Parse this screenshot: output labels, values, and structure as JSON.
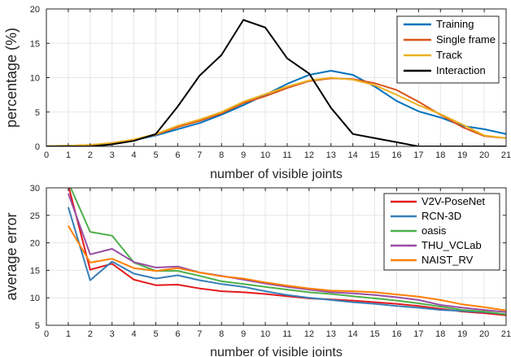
{
  "colors": {
    "blue": "#0072BD",
    "orange_red": "#D95319",
    "yellow": "#EDB120",
    "black": "#000000",
    "red": "#E41A1C",
    "steel_blue": "#377EB8",
    "green": "#4DAF4A",
    "purple": "#984EA3",
    "orange": "#FF7F00"
  },
  "chart_data": [
    {
      "type": "line",
      "xlabel": "number of visible joints",
      "ylabel": "percentage (%)",
      "xlim": [
        0,
        21
      ],
      "ylim": [
        0,
        20
      ],
      "x_ticks": [
        "0",
        "1",
        "2",
        "3",
        "4",
        "5",
        "6",
        "7",
        "8",
        "9",
        "10",
        "11",
        "12",
        "13",
        "14",
        "15",
        "16",
        "17",
        "18",
        "19",
        "20",
        "21"
      ],
      "y_ticks": [
        "0",
        "5",
        "10",
        "15",
        "20"
      ],
      "grid": "on",
      "legend_position": "top-right",
      "x": [
        0,
        1,
        2,
        3,
        4,
        5,
        6,
        7,
        8,
        9,
        10,
        11,
        12,
        13,
        14,
        15,
        16,
        17,
        18,
        19,
        20,
        21
      ],
      "series": [
        {
          "name": "Training",
          "color": "#0072BD",
          "values": [
            0.05,
            0.1,
            0.2,
            0.4,
            0.9,
            1.6,
            2.5,
            3.4,
            4.6,
            6.0,
            7.5,
            9.1,
            10.4,
            11.0,
            10.4,
            8.7,
            6.6,
            5.1,
            4.2,
            3.0,
            2.5,
            1.8
          ]
        },
        {
          "name": "Single frame",
          "color": "#D95319",
          "values": [
            0.05,
            0.1,
            0.2,
            0.5,
            1.0,
            1.7,
            2.8,
            3.7,
            4.8,
            6.3,
            7.3,
            8.5,
            9.5,
            9.9,
            9.8,
            9.2,
            8.2,
            6.5,
            4.6,
            2.8,
            1.5,
            1.2
          ]
        },
        {
          "name": "Track",
          "color": "#EDB120",
          "values": [
            0.05,
            0.1,
            0.2,
            0.5,
            1.0,
            1.8,
            3.0,
            3.9,
            5.0,
            6.5,
            7.6,
            8.7,
            9.6,
            10.0,
            9.7,
            8.9,
            7.5,
            6.0,
            4.7,
            3.2,
            1.6,
            1.2
          ]
        },
        {
          "name": "Interaction",
          "color": "#000000",
          "values": [
            0.0,
            0.0,
            0.0,
            0.3,
            0.8,
            1.8,
            5.8,
            10.3,
            13.3,
            18.4,
            17.3,
            12.8,
            10.6,
            5.6,
            1.8,
            1.2,
            0.6,
            0.0,
            0.0,
            0.0,
            0.0,
            0.0
          ]
        }
      ]
    },
    {
      "type": "line",
      "xlabel": "number of visible joints",
      "ylabel": "average error",
      "xlim": [
        0,
        21
      ],
      "ylim": [
        5,
        30
      ],
      "x_ticks": [
        "0",
        "1",
        "2",
        "3",
        "4",
        "5",
        "6",
        "7",
        "8",
        "9",
        "10",
        "11",
        "12",
        "13",
        "14",
        "15",
        "16",
        "17",
        "18",
        "19",
        "20",
        "21"
      ],
      "y_ticks": [
        "5",
        "10",
        "15",
        "20",
        "25",
        "30"
      ],
      "grid": "on",
      "legend_position": "top-right",
      "x": [
        1,
        2,
        3,
        4,
        5,
        6,
        7,
        8,
        9,
        10,
        11,
        12,
        13,
        14,
        15,
        16,
        17,
        18,
        19,
        20,
        21
      ],
      "series": [
        {
          "name": "V2V-PoseNet",
          "color": "#E41A1C",
          "values": [
            30.5,
            15.1,
            16.2,
            13.3,
            12.3,
            12.4,
            11.7,
            11.2,
            11.0,
            10.7,
            10.3,
            9.9,
            9.7,
            9.5,
            9.2,
            8.9,
            8.5,
            8.0,
            7.5,
            7.2,
            6.8
          ]
        },
        {
          "name": "RCN-3D",
          "color": "#377EB8",
          "values": [
            26.5,
            13.2,
            16.6,
            14.4,
            13.5,
            14.1,
            13.2,
            12.5,
            12.0,
            11.2,
            10.5,
            10.0,
            9.6,
            9.2,
            8.9,
            8.5,
            8.2,
            7.8,
            7.6,
            7.4,
            7.0
          ]
        },
        {
          "name": "oasis",
          "color": "#4DAF4A",
          "values": [
            31.0,
            22.0,
            21.3,
            16.4,
            14.9,
            14.9,
            14.0,
            13.0,
            12.5,
            12.0,
            11.5,
            11.0,
            10.7,
            10.3,
            9.9,
            9.5,
            9.0,
            8.4,
            7.8,
            7.5,
            7.0
          ]
        },
        {
          "name": "THU_VCLab",
          "color": "#984EA3",
          "values": [
            29.0,
            17.9,
            18.9,
            16.5,
            15.5,
            15.7,
            14.6,
            14.0,
            13.3,
            12.6,
            12.0,
            11.5,
            11.0,
            10.8,
            10.5,
            10.1,
            9.6,
            8.7,
            8.2,
            7.8,
            7.4
          ]
        },
        {
          "name": "NAIST_RV",
          "color": "#FF7F00",
          "values": [
            23.1,
            16.4,
            17.1,
            15.4,
            14.9,
            15.4,
            14.6,
            13.9,
            13.5,
            12.8,
            12.2,
            11.7,
            11.3,
            11.2,
            11.0,
            10.6,
            10.2,
            9.6,
            8.8,
            8.3,
            7.7
          ]
        }
      ]
    }
  ]
}
